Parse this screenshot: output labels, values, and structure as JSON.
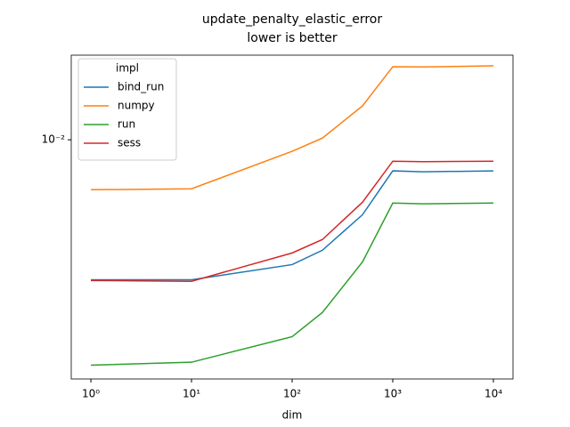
{
  "chart_data": {
    "type": "line",
    "title": "update_penalty_elastic_error",
    "subtitle": "lower is better",
    "x_label": "dim",
    "x": [
      1,
      10,
      100,
      200,
      500,
      1000,
      2000,
      10000
    ],
    "series": [
      {
        "name": "bind_run",
        "color": "#1f77b4",
        "values": [
          0.00323,
          0.00323,
          0.00365,
          0.0041,
          0.00546,
          0.00778,
          0.00772,
          0.00778
        ]
      },
      {
        "name": "numpy",
        "color": "#ff7f0e",
        "values": [
          0.00668,
          0.00673,
          0.00911,
          0.01014,
          0.01314,
          0.01804,
          0.018,
          0.01816
        ]
      },
      {
        "name": "run",
        "color": "#2ca02c",
        "values": [
          0.00162,
          0.00166,
          0.00204,
          0.00248,
          0.00373,
          0.006,
          0.00596,
          0.006
        ]
      },
      {
        "name": "sess",
        "color": "#d62728",
        "values": [
          0.00321,
          0.00319,
          0.00401,
          0.00447,
          0.00604,
          0.00841,
          0.00838,
          0.00841
        ]
      }
    ],
    "legend_title": "impl",
    "legend_position": "upper-left",
    "x_scale": "log",
    "y_scale": "log",
    "xlim": [
      0.638,
      15660
    ],
    "ylim": [
      0.00145,
      0.0198
    ],
    "xticks": [
      {
        "value": 1,
        "label": "10⁰"
      },
      {
        "value": 10,
        "label": "10¹"
      },
      {
        "value": 100,
        "label": "10²"
      },
      {
        "value": 1000,
        "label": "10³"
      },
      {
        "value": 10000,
        "label": "10⁴"
      }
    ],
    "yticks": [
      {
        "value": 0.01,
        "label": "10⁻²"
      }
    ]
  }
}
